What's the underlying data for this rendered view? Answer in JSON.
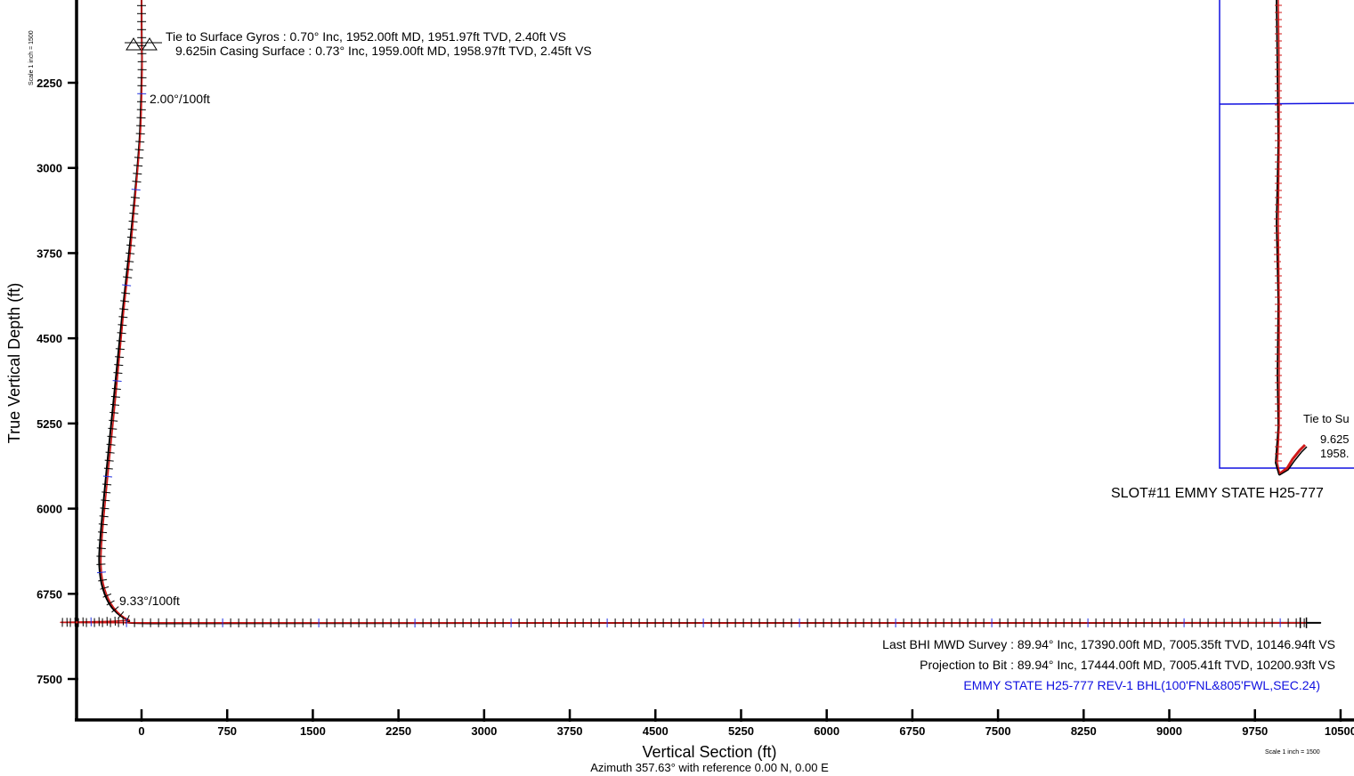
{
  "chart_data": {
    "type": "line",
    "xlabel": "Vertical Section (ft)",
    "ylabel": "True Vertical Depth (ft)",
    "subtitle": "Azimuth 357.63° with reference 0.00 N, 0.00 E",
    "scale_note": "Scale 1 inch = 1500",
    "xlim": [
      -575,
      10500
    ],
    "ylim": [
      7850,
      1500
    ],
    "x_ticks": [
      0,
      750,
      1500,
      2250,
      3000,
      3750,
      4500,
      5250,
      6000,
      6750,
      7500,
      8250,
      9000,
      9750,
      10500
    ],
    "y_ticks": [
      2250,
      3000,
      3750,
      4500,
      5250,
      6000,
      6750,
      7500
    ],
    "series": [
      {
        "name": "",
        "color": "#000000",
        "points": [
          [
            0,
            1500
          ],
          [
            2,
            1952
          ],
          [
            3,
            2100
          ],
          [
            -15,
            2700
          ],
          [
            -55,
            3200
          ],
          [
            -110,
            3750
          ],
          [
            -170,
            4300
          ],
          [
            -240,
            5000
          ],
          [
            -310,
            5700
          ],
          [
            -360,
            6250
          ],
          [
            -370,
            6500
          ],
          [
            -340,
            6700
          ],
          [
            -260,
            6870
          ],
          [
            -120,
            6980
          ],
          [
            100,
            7010
          ],
          [
            2000,
            7008
          ],
          [
            5000,
            7006
          ],
          [
            8000,
            7006
          ],
          [
            10146.94,
            7005.35
          ],
          [
            10200.93,
            7005.41
          ]
        ]
      },
      {
        "name": "",
        "color": "#d01818",
        "points": [
          [
            0,
            1500
          ],
          [
            2,
            1952
          ],
          [
            5,
            2150
          ],
          [
            -10,
            2700
          ],
          [
            -50,
            3200
          ],
          [
            -100,
            3750
          ],
          [
            -160,
            4300
          ],
          [
            -225,
            5000
          ],
          [
            -295,
            5700
          ],
          [
            -345,
            6250
          ],
          [
            -355,
            6500
          ],
          [
            -325,
            6700
          ],
          [
            -245,
            6870
          ],
          [
            -110,
            6980
          ],
          [
            100,
            7005
          ],
          [
            10200,
            7005
          ]
        ]
      }
    ],
    "annotations": {
      "tie_to_surface": "Tie to Surface Gyros : 0.70° Inc, 1952.00ft MD, 1951.97ft TVD, 2.40ft VS",
      "casing": "9.625in Casing Surface : 0.73° Inc, 1959.00ft MD, 1958.97ft TVD, 2.45ft VS",
      "dls_top": "2.00°/100ft",
      "dls_bottom": "9.33°/100ft",
      "last_survey": "Last BHI MWD Survey : 89.94° Inc, 17390.00ft MD, 7005.35ft TVD, 10146.94ft VS",
      "projection": "Projection to Bit : 89.94° Inc, 17444.00ft MD, 7005.41ft TVD, 10200.93ft VS",
      "target": "EMMY STATE H25-777 REV-1 BHL(100'FNL&805'FWL,SEC.24)"
    },
    "inset": {
      "slot_label": "SLOT#11 EMMY STATE H25-777",
      "tie_label": "Tie to Su",
      "casing_label": "9.625",
      "casing_value": "1958."
    },
    "colors": {
      "actual": "#000000",
      "plan": "#d01818",
      "survey_marks": "#2030e0",
      "boundary": "#1010e0"
    },
    "grid": false
  }
}
